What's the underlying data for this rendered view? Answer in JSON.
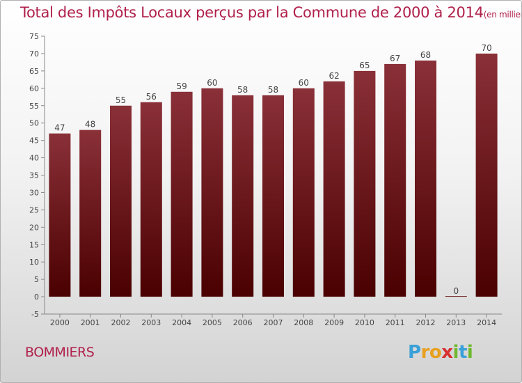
{
  "chart": {
    "title": "Total des Impôts Locaux perçus par la Commune de 2000 à 2014",
    "title_unit": "(en milliers d'€)",
    "commune": "BOMMIERS",
    "logo": {
      "letters": [
        "P",
        "r",
        "o",
        "x",
        "i",
        "t",
        "i"
      ],
      "colors": [
        "#3aa0d8",
        "#e8a020",
        "#e8a020",
        "#d83030",
        "#70b830",
        "#3aa0d8",
        "#70b830"
      ]
    }
  },
  "chart_data": {
    "type": "bar",
    "categories": [
      "2000",
      "2001",
      "2002",
      "2003",
      "2004",
      "2005",
      "2006",
      "2007",
      "2008",
      "2009",
      "2010",
      "2011",
      "2012",
      "2013",
      "2014"
    ],
    "values": [
      47,
      48,
      55,
      56,
      59,
      60,
      58,
      58,
      60,
      62,
      65,
      67,
      68,
      0,
      70
    ],
    "ylim": [
      -5,
      75
    ],
    "yticks": [
      -5,
      0,
      5,
      10,
      15,
      20,
      25,
      30,
      35,
      40,
      45,
      50,
      55,
      60,
      65,
      70,
      75
    ],
    "grid": false,
    "bar_color_top": "#8a3038",
    "bar_color_bottom": "#4a0000"
  }
}
